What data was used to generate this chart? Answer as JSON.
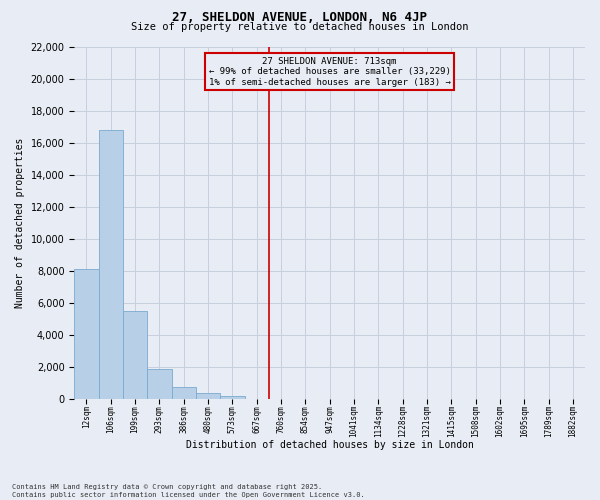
{
  "title1": "27, SHELDON AVENUE, LONDON, N6 4JP",
  "title2": "Size of property relative to detached houses in London",
  "xlabel": "Distribution of detached houses by size in London",
  "ylabel": "Number of detached properties",
  "categories": [
    "12sqm",
    "106sqm",
    "199sqm",
    "293sqm",
    "386sqm",
    "480sqm",
    "573sqm",
    "667sqm",
    "760sqm",
    "854sqm",
    "947sqm",
    "1041sqm",
    "1134sqm",
    "1228sqm",
    "1321sqm",
    "1415sqm",
    "1508sqm",
    "1602sqm",
    "1695sqm",
    "1789sqm",
    "1882sqm"
  ],
  "values": [
    8100,
    16800,
    5500,
    1850,
    750,
    320,
    180,
    0,
    0,
    0,
    0,
    0,
    0,
    0,
    0,
    0,
    0,
    0,
    0,
    0,
    0
  ],
  "bar_color": "#b8cfe8",
  "bar_edge_color": "#7aaad0",
  "vline_x": 7.5,
  "vline_color": "#cc0000",
  "annotation_title": "27 SHELDON AVENUE: 713sqm",
  "annotation_line1": "← 99% of detached houses are smaller (33,229)",
  "annotation_line2": "1% of semi-detached houses are larger (183) →",
  "annotation_box_color": "#cc0000",
  "ylim": [
    0,
    22000
  ],
  "yticks": [
    0,
    2000,
    4000,
    6000,
    8000,
    10000,
    12000,
    14000,
    16000,
    18000,
    20000,
    22000
  ],
  "grid_color": "#c8d0e0",
  "bg_color": "#e8ecf4",
  "footer1": "Contains HM Land Registry data © Crown copyright and database right 2025.",
  "footer2": "Contains public sector information licensed under the Open Government Licence v3.0."
}
